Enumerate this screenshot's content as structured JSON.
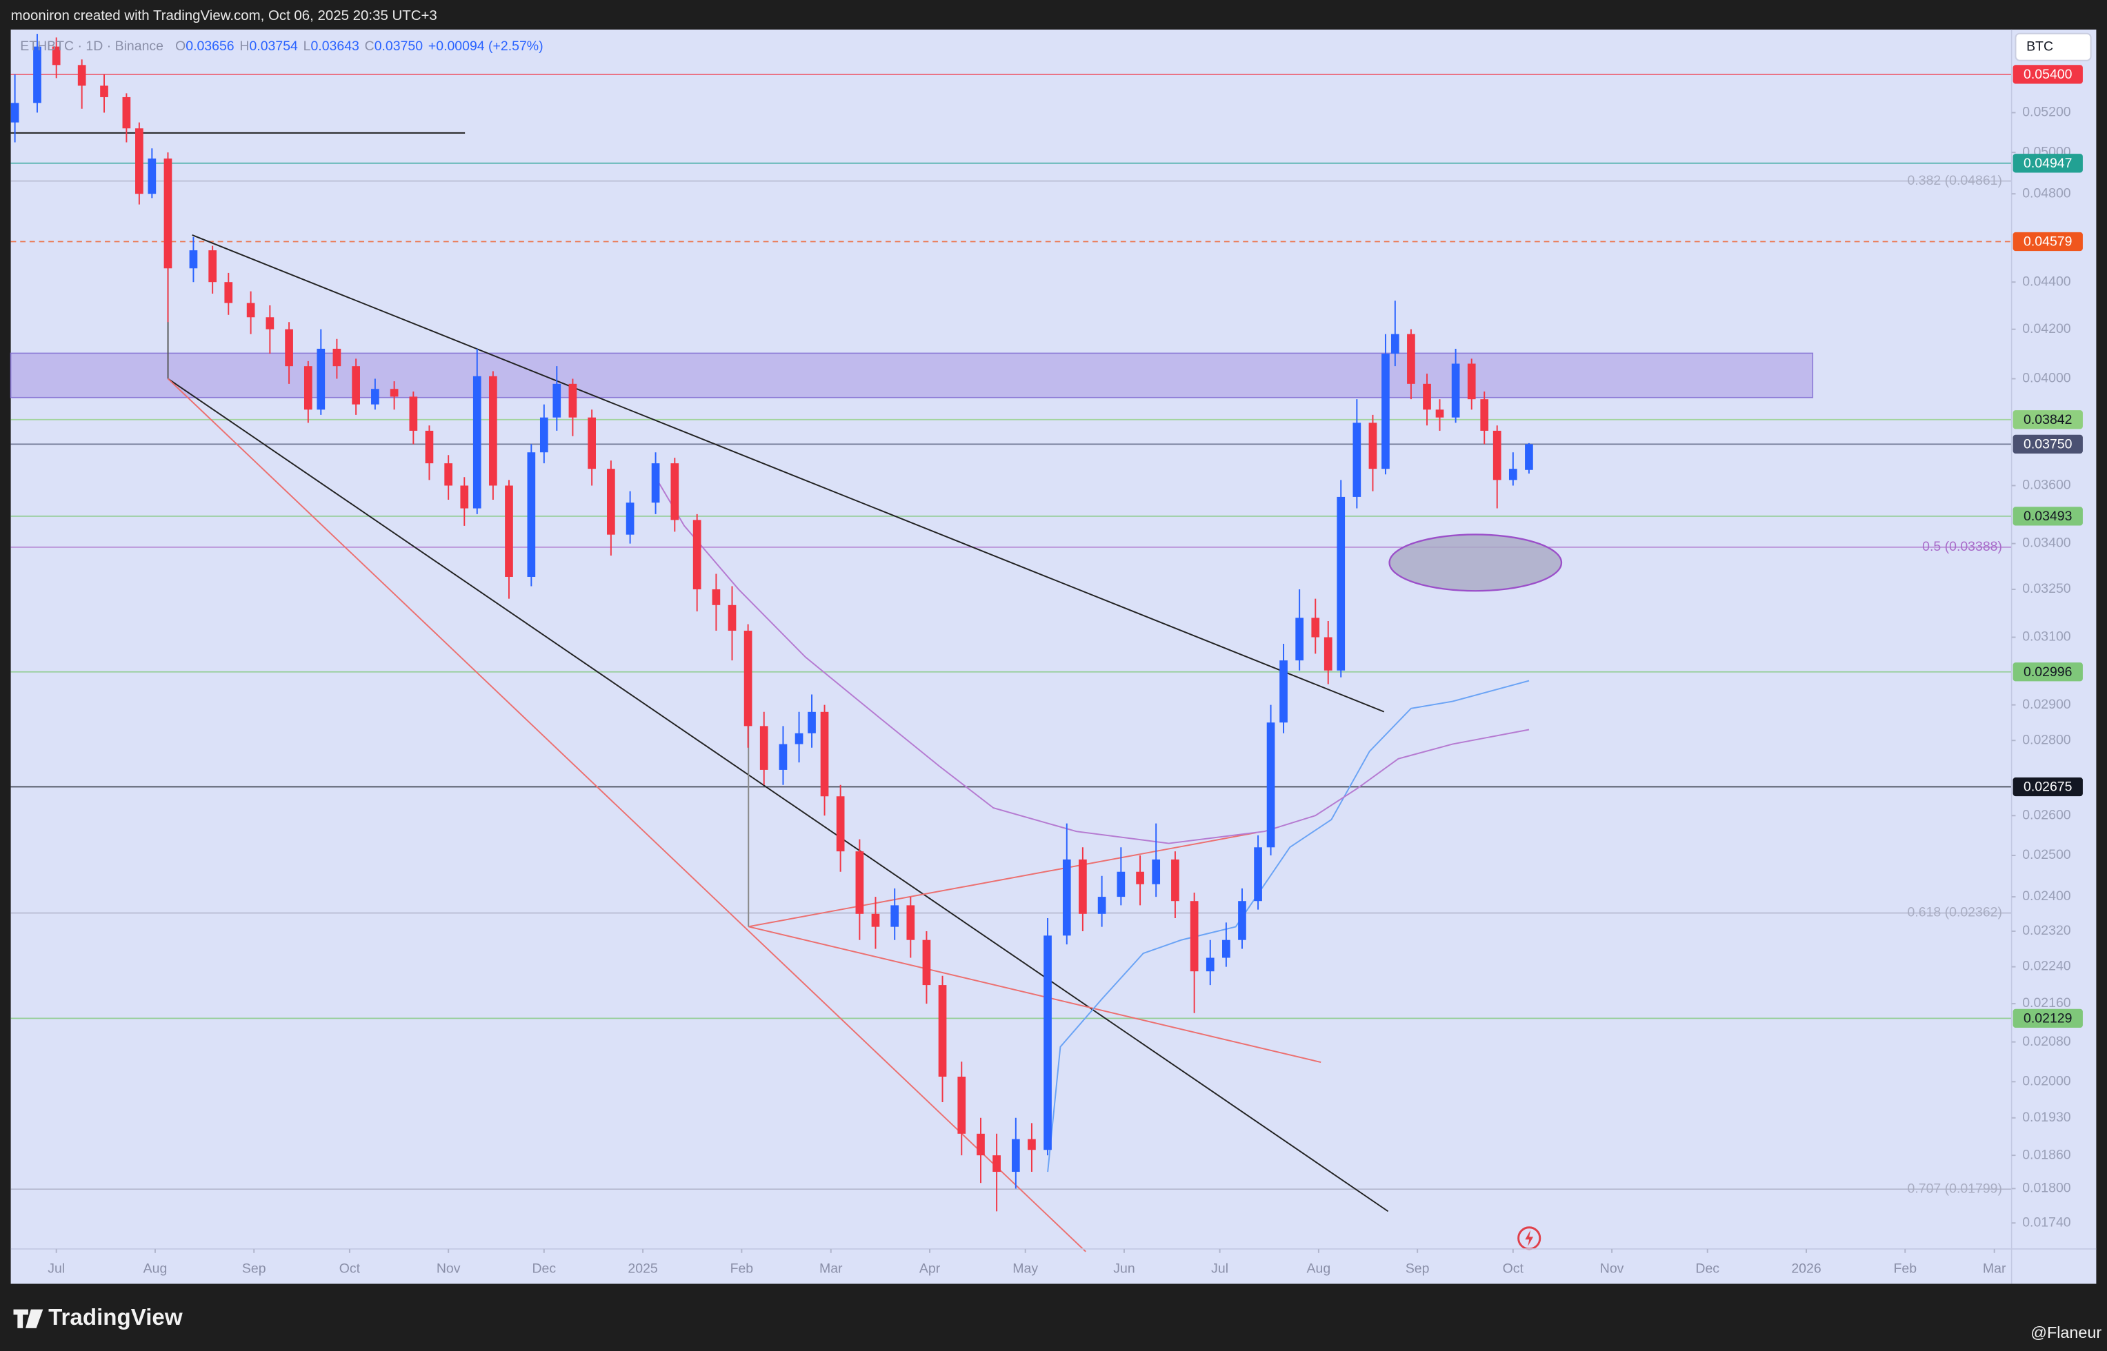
{
  "header": {
    "attribution": "mooniron created with TradingView.com, Oct 06, 2025 20:35 UTC+3",
    "brand": "TradingView",
    "credit": "@Flaneur"
  },
  "chart_data": {
    "type": "candlestick",
    "symbol": "ETHBTC · 1D · Binance",
    "ohlc": [
      {
        "key": "O",
        "text": "0.03656"
      },
      {
        "key": "H",
        "text": "0.03754"
      },
      {
        "key": "L",
        "text": "0.03643"
      },
      {
        "key": "C",
        "text": "0.03750"
      }
    ],
    "change": "+0.00094 (+2.57%)",
    "currency": "BTC",
    "log_scale": true,
    "grid": false,
    "up_color": "#2962ff",
    "down_color": "#f23645",
    "x": [
      -13,
      -6,
      0,
      8,
      15,
      22,
      26,
      30,
      35,
      43,
      49,
      54,
      61,
      67,
      73,
      79,
      83,
      88,
      94,
      100,
      106,
      112,
      117,
      123,
      128,
      132,
      137,
      142,
      149,
      153,
      157,
      162,
      168,
      174,
      180,
      188,
      194,
      201,
      207,
      212,
      217,
      222,
      228,
      233,
      237,
      241,
      246,
      252,
      257,
      263,
      268,
      273,
      278,
      284,
      290,
      295,
      301,
      306,
      311,
      317,
      322,
      328,
      334,
      340,
      345,
      351,
      357,
      362,
      367,
      372,
      377,
      381,
      385,
      390,
      395,
      399,
      403,
      408,
      413,
      417,
      420,
      425,
      430,
      434,
      439,
      444,
      448,
      452,
      457,
      462
    ],
    "open": [
      0.0515,
      0.0525,
      0.0555,
      0.0545,
      0.0534,
      0.0528,
      0.0512,
      0.048,
      0.0497,
      0.0446,
      0.0454,
      0.044,
      0.0431,
      0.0425,
      0.042,
      0.0405,
      0.0388,
      0.0412,
      0.0405,
      0.039,
      0.0396,
      0.0393,
      0.038,
      0.0368,
      0.036,
      0.0352,
      0.0401,
      0.036,
      0.0329,
      0.0372,
      0.0385,
      0.0398,
      0.0385,
      0.0366,
      0.0343,
      0.0354,
      0.0368,
      0.0348,
      0.0325,
      0.032,
      0.0312,
      0.0284,
      0.0272,
      0.0279,
      0.0282,
      0.0288,
      0.0265,
      0.0251,
      0.0236,
      0.0233,
      0.0238,
      0.023,
      0.022,
      0.0201,
      0.019,
      0.0186,
      0.0183,
      0.0189,
      0.0187,
      0.0231,
      0.0249,
      0.0236,
      0.024,
      0.0246,
      0.0243,
      0.0249,
      0.0239,
      0.0223,
      0.0226,
      0.023,
      0.0239,
      0.0252,
      0.0285,
      0.0303,
      0.0316,
      0.031,
      0.03,
      0.0356,
      0.0383,
      0.0366,
      0.041,
      0.0418,
      0.0398,
      0.0388,
      0.0385,
      0.0406,
      0.0392,
      0.038,
      0.0362,
      0.03656
    ],
    "high": [
      0.054,
      0.0562,
      0.056,
      0.0548,
      0.054,
      0.053,
      0.0515,
      0.0502,
      0.05,
      0.046,
      0.0456,
      0.0444,
      0.0436,
      0.043,
      0.0423,
      0.0407,
      0.042,
      0.0416,
      0.0408,
      0.04,
      0.0399,
      0.0395,
      0.0382,
      0.0371,
      0.0363,
      0.0412,
      0.0403,
      0.0362,
      0.0375,
      0.039,
      0.0405,
      0.04,
      0.0388,
      0.0369,
      0.0358,
      0.0372,
      0.037,
      0.035,
      0.033,
      0.0326,
      0.0314,
      0.0288,
      0.0284,
      0.0288,
      0.0293,
      0.029,
      0.0268,
      0.0254,
      0.024,
      0.0242,
      0.024,
      0.0232,
      0.0222,
      0.0204,
      0.0193,
      0.019,
      0.0193,
      0.0192,
      0.0235,
      0.0258,
      0.0252,
      0.0245,
      0.0252,
      0.025,
      0.0258,
      0.0251,
      0.0241,
      0.023,
      0.0234,
      0.0242,
      0.0255,
      0.029,
      0.0308,
      0.0325,
      0.0322,
      0.0315,
      0.0362,
      0.0392,
      0.0386,
      0.0418,
      0.0432,
      0.042,
      0.0402,
      0.0392,
      0.0412,
      0.0408,
      0.0395,
      0.0382,
      0.0372,
      0.03754
    ],
    "low": [
      0.0505,
      0.052,
      0.0538,
      0.0522,
      0.052,
      0.0505,
      0.0475,
      0.0478,
      0.0423,
      0.044,
      0.0435,
      0.0426,
      0.0418,
      0.041,
      0.0398,
      0.0383,
      0.0386,
      0.04,
      0.0386,
      0.0388,
      0.0388,
      0.0375,
      0.0362,
      0.0355,
      0.0346,
      0.035,
      0.0355,
      0.0322,
      0.0326,
      0.0368,
      0.038,
      0.0378,
      0.036,
      0.0336,
      0.034,
      0.035,
      0.0344,
      0.0318,
      0.0312,
      0.0303,
      0.0278,
      0.0268,
      0.0268,
      0.0274,
      0.0278,
      0.026,
      0.0246,
      0.023,
      0.0228,
      0.023,
      0.0226,
      0.0216,
      0.0196,
      0.0186,
      0.0181,
      0.0176,
      0.018,
      0.0183,
      0.0186,
      0.0229,
      0.0232,
      0.0233,
      0.0238,
      0.0238,
      0.024,
      0.0235,
      0.0214,
      0.022,
      0.0224,
      0.0228,
      0.0237,
      0.025,
      0.0282,
      0.03,
      0.0305,
      0.0296,
      0.0298,
      0.0352,
      0.0358,
      0.0364,
      0.0405,
      0.0392,
      0.0382,
      0.038,
      0.0383,
      0.0388,
      0.0375,
      0.0352,
      0.036,
      0.03643
    ],
    "close": [
      0.0525,
      0.0555,
      0.0545,
      0.0534,
      0.0528,
      0.0512,
      0.048,
      0.0497,
      0.0446,
      0.0454,
      0.044,
      0.0431,
      0.0425,
      0.042,
      0.0405,
      0.0388,
      0.0412,
      0.0405,
      0.039,
      0.0396,
      0.0393,
      0.038,
      0.0368,
      0.036,
      0.0352,
      0.0401,
      0.036,
      0.0329,
      0.0372,
      0.0385,
      0.0398,
      0.0385,
      0.0366,
      0.0343,
      0.0354,
      0.0368,
      0.0348,
      0.0325,
      0.032,
      0.0312,
      0.0284,
      0.0272,
      0.0279,
      0.0282,
      0.0288,
      0.0265,
      0.0251,
      0.0236,
      0.0233,
      0.0238,
      0.023,
      0.022,
      0.0201,
      0.019,
      0.0186,
      0.0183,
      0.0189,
      0.0187,
      0.0231,
      0.0249,
      0.0236,
      0.024,
      0.0246,
      0.0243,
      0.0249,
      0.0239,
      0.0223,
      0.0226,
      0.023,
      0.0239,
      0.0252,
      0.0285,
      0.0303,
      0.0316,
      0.031,
      0.03,
      0.0356,
      0.0383,
      0.0366,
      0.041,
      0.0418,
      0.0398,
      0.0388,
      0.0385,
      0.0406,
      0.0392,
      0.038,
      0.0362,
      0.0366,
      0.0375
    ],
    "moving_averages": [
      {
        "color": "#6aa3f5",
        "x": [
          311,
          315,
          328,
          341,
          353,
          370,
          387,
          400,
          412,
          425,
          438,
          462
        ],
        "values": [
          0.0183,
          0.0207,
          0.0217,
          0.0227,
          0.023,
          0.0233,
          0.0252,
          0.0259,
          0.0277,
          0.0289,
          0.0291,
          0.0297
        ]
      },
      {
        "color": "#b57ad1",
        "x": [
          189,
          197,
          214,
          235,
          256,
          277,
          294,
          320,
          349,
          379,
          395,
          408,
          421,
          438,
          462
        ],
        "values": [
          0.0361,
          0.0346,
          0.0325,
          0.0304,
          0.0288,
          0.0273,
          0.0262,
          0.0256,
          0.0253,
          0.0256,
          0.026,
          0.0267,
          0.0275,
          0.0279,
          0.0283
        ]
      }
    ],
    "levels": [
      {
        "value": 0.054,
        "label": "0.05400",
        "color": "#f23645",
        "text_color": "#ffffff",
        "dashed": false
      },
      {
        "value": 0.04947,
        "label": "0.04947",
        "color": "#22a193",
        "text_color": "#ffffff",
        "dashed": false
      },
      {
        "value": 0.04579,
        "label": "0.04579",
        "color": "#f0561d",
        "text_color": "#ffffff",
        "dashed": true
      },
      {
        "value": 0.03842,
        "label": "0.03842",
        "color": "#8fcf7f",
        "text_color": "#131722",
        "dashed": false
      },
      {
        "value": 0.0375,
        "label": "0.03750",
        "color": "#4b5172",
        "text_color": "#ffffff",
        "dashed": false
      },
      {
        "value": 0.03493,
        "label": "0.03493",
        "color": "#7fc77a",
        "text_color": "#131722",
        "dashed": false
      },
      {
        "value": 0.02996,
        "label": "0.02996",
        "color": "#7fc77a",
        "text_color": "#131722",
        "dashed": false
      },
      {
        "value": 0.02675,
        "label": "0.02675",
        "color": "#131722",
        "text_color": "#ffffff",
        "dashed": false
      },
      {
        "value": 0.02129,
        "label": "0.02129",
        "color": "#7fc77a",
        "text_color": "#131722",
        "dashed": false
      }
    ],
    "fib_levels": [
      {
        "value": 0.04861,
        "label": "0.382 (0.04861)",
        "color": "#a9adc2"
      },
      {
        "value": 0.03388,
        "label": "0.5 (0.03388)",
        "color": "#a86cc9"
      },
      {
        "value": 0.02362,
        "label": "0.618 (0.02362)",
        "color": "#a9adc2"
      },
      {
        "value": 0.01799,
        "label": "0.707 (0.01799)",
        "color": "#a9adc2"
      }
    ],
    "xlim": [
      -14.3,
      613.4
    ],
    "ylim": [
      0.01696,
      0.05644
    ],
    "xticks": [
      {
        "value": 0,
        "label": "Jul"
      },
      {
        "value": 31,
        "label": "Aug"
      },
      {
        "value": 62,
        "label": "Sep"
      },
      {
        "value": 92,
        "label": "Oct"
      },
      {
        "value": 123,
        "label": "Nov"
      },
      {
        "value": 153,
        "label": "Dec"
      },
      {
        "value": 184,
        "label": "2025"
      },
      {
        "value": 215,
        "label": "Feb"
      },
      {
        "value": 243,
        "label": "Mar"
      },
      {
        "value": 274,
        "label": "Apr"
      },
      {
        "value": 304,
        "label": "May"
      },
      {
        "value": 335,
        "label": "Jun"
      },
      {
        "value": 365,
        "label": "Jul"
      },
      {
        "value": 396,
        "label": "Aug"
      },
      {
        "value": 427,
        "label": "Sep"
      },
      {
        "value": 457,
        "label": "Oct"
      },
      {
        "value": 488,
        "label": "Nov"
      },
      {
        "value": 518,
        "label": "Dec"
      },
      {
        "value": 549,
        "label": "2026"
      },
      {
        "value": 580,
        "label": "Feb"
      },
      {
        "value": 608,
        "label": "Mar"
      }
    ],
    "yticks": [
      {
        "value": 0.052,
        "label": "0.05200"
      },
      {
        "value": 0.05,
        "label": "0.05000"
      },
      {
        "value": 0.048,
        "label": "0.04800"
      },
      {
        "value": 0.044,
        "label": "0.04400"
      },
      {
        "value": 0.042,
        "label": "0.04200"
      },
      {
        "value": 0.04,
        "label": "0.04000"
      },
      {
        "value": 0.036,
        "label": "0.03600"
      },
      {
        "value": 0.034,
        "label": "0.03400"
      },
      {
        "value": 0.0325,
        "label": "0.03250"
      },
      {
        "value": 0.031,
        "label": "0.03100"
      },
      {
        "value": 0.029,
        "label": "0.02900"
      },
      {
        "value": 0.028,
        "label": "0.02800"
      },
      {
        "value": 0.026,
        "label": "0.02600"
      },
      {
        "value": 0.025,
        "label": "0.02500"
      },
      {
        "value": 0.024,
        "label": "0.02400"
      },
      {
        "value": 0.0232,
        "label": "0.02320"
      },
      {
        "value": 0.0224,
        "label": "0.02240"
      },
      {
        "value": 0.0216,
        "label": "0.02160"
      },
      {
        "value": 0.0208,
        "label": "0.02080"
      },
      {
        "value": 0.02,
        "label": "0.02000"
      },
      {
        "value": 0.0193,
        "label": "0.01930"
      },
      {
        "value": 0.0186,
        "label": "0.01860"
      },
      {
        "value": 0.018,
        "label": "0.01800"
      },
      {
        "value": 0.0174,
        "label": "0.01740"
      }
    ]
  }
}
